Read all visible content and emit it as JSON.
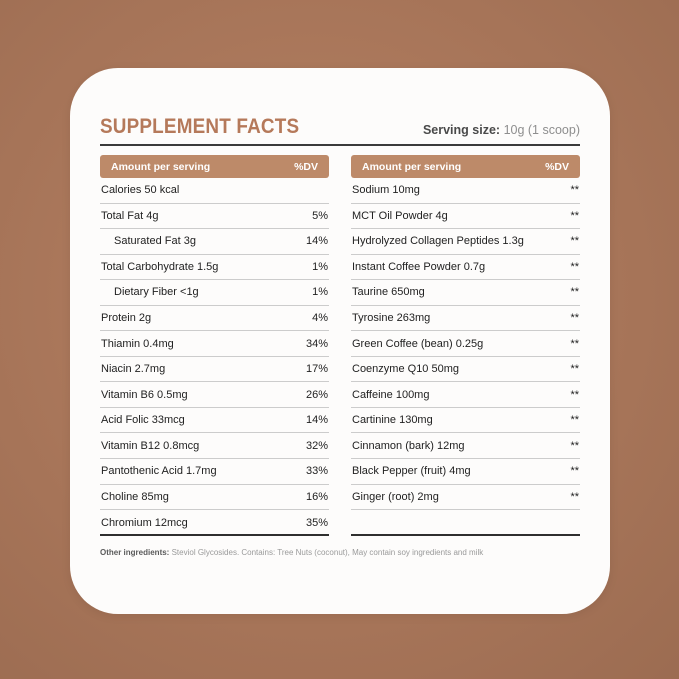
{
  "colors": {
    "background": "#a97558",
    "card": "#fdfcfb",
    "accent": "#b5795a",
    "header_bar": "#bd8a69",
    "rule_dark": "#3b3b3b",
    "row_divider": "#cccccc",
    "text_dark": "#222222"
  },
  "header": {
    "title": "SUPPLEMENT FACTS",
    "serving_label": "Serving size:",
    "serving_value": "10g (1 scoop)"
  },
  "table_header": {
    "amount_label": "Amount per serving",
    "dv_label": "%DV"
  },
  "tables": {
    "left": {
      "rows": [
        {
          "label": "Calories 50 kcal",
          "dv": "",
          "indent": false
        },
        {
          "label": "Total Fat 4g",
          "dv": "5%",
          "indent": false
        },
        {
          "label": "Saturated Fat 3g",
          "dv": "14%",
          "indent": true
        },
        {
          "label": "Total Carbohydrate 1.5g",
          "dv": "1%",
          "indent": false
        },
        {
          "label": "Dietary Fiber <1g",
          "dv": "1%",
          "indent": true
        },
        {
          "label": "Protein 2g",
          "dv": "4%",
          "indent": false
        },
        {
          "label": "Thiamin 0.4mg",
          "dv": "34%",
          "indent": false
        },
        {
          "label": "Niacin 2.7mg",
          "dv": "17%",
          "indent": false
        },
        {
          "label": "Vitamin B6 0.5mg",
          "dv": "26%",
          "indent": false
        },
        {
          "label": "Acid Folic 33mcg",
          "dv": "14%",
          "indent": false
        },
        {
          "label": "Vitamin B12 0.8mcg",
          "dv": "32%",
          "indent": false
        },
        {
          "label": "Pantothenic Acid 1.7mg",
          "dv": "33%",
          "indent": false
        },
        {
          "label": "Choline 85mg",
          "dv": "16%",
          "indent": false
        },
        {
          "label": "Chromium 12mcg",
          "dv": "35%",
          "indent": false
        }
      ]
    },
    "right": {
      "rows": [
        {
          "label": "Sodium 10mg",
          "dv": "**",
          "indent": false
        },
        {
          "label": "MCT Oil Powder 4g",
          "dv": "**",
          "indent": false
        },
        {
          "label": "Hydrolyzed Collagen Peptides 1.3g",
          "dv": "**",
          "indent": false
        },
        {
          "label": "Instant Coffee Powder 0.7g",
          "dv": "**",
          "indent": false
        },
        {
          "label": "Taurine 650mg",
          "dv": "**",
          "indent": false
        },
        {
          "label": "Tyrosine 263mg",
          "dv": "**",
          "indent": false
        },
        {
          "label": "Green Coffee (bean) 0.25g",
          "dv": "**",
          "indent": false
        },
        {
          "label": "Coenzyme Q10 50mg",
          "dv": "**",
          "indent": false
        },
        {
          "label": "Caffeine 100mg",
          "dv": "**",
          "indent": false
        },
        {
          "label": "Cartinine 130mg",
          "dv": "**",
          "indent": false
        },
        {
          "label": "Cinnamon (bark) 12mg",
          "dv": "**",
          "indent": false
        },
        {
          "label": "Black Pepper (fruit) 4mg",
          "dv": "**",
          "indent": false
        },
        {
          "label": "Ginger (root) 2mg",
          "dv": "**",
          "indent": false
        }
      ]
    }
  },
  "footer": {
    "other_label": "Other ingredients:",
    "other_text": "Steviol Glycosides. Contains: Tree Nuts (coconut), May contain soy ingredients and milk"
  }
}
